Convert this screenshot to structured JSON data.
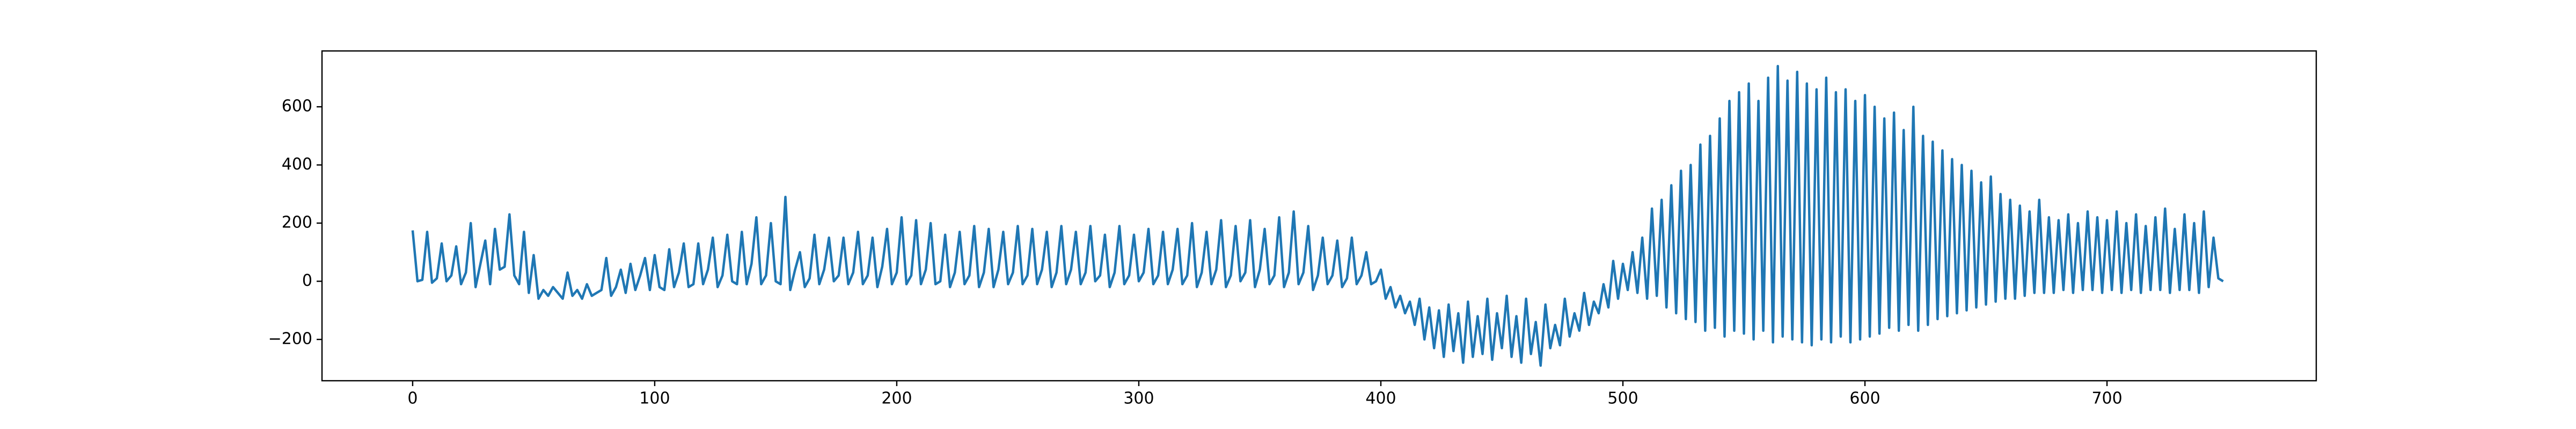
{
  "chart_data": {
    "type": "line",
    "color": "#1f77b4",
    "x": [
      0,
      2,
      4,
      6,
      8,
      10,
      12,
      14,
      16,
      18,
      20,
      22,
      24,
      26,
      28,
      30,
      32,
      34,
      36,
      38,
      40,
      42,
      44,
      46,
      48,
      50,
      52,
      54,
      56,
      58,
      60,
      62,
      64,
      66,
      68,
      70,
      72,
      74,
      76,
      78,
      80,
      82,
      84,
      86,
      88,
      90,
      92,
      94,
      96,
      98,
      100,
      102,
      104,
      106,
      108,
      110,
      112,
      114,
      116,
      118,
      120,
      122,
      124,
      126,
      128,
      130,
      132,
      134,
      136,
      138,
      140,
      142,
      144,
      146,
      148,
      150,
      152,
      154,
      156,
      158,
      160,
      162,
      164,
      166,
      168,
      170,
      172,
      174,
      176,
      178,
      180,
      182,
      184,
      186,
      188,
      190,
      192,
      194,
      196,
      198,
      200,
      202,
      204,
      206,
      208,
      210,
      212,
      214,
      216,
      218,
      220,
      222,
      224,
      226,
      228,
      230,
      232,
      234,
      236,
      238,
      240,
      242,
      244,
      246,
      248,
      250,
      252,
      254,
      256,
      258,
      260,
      262,
      264,
      266,
      268,
      270,
      272,
      274,
      276,
      278,
      280,
      282,
      284,
      286,
      288,
      290,
      292,
      294,
      296,
      298,
      300,
      302,
      304,
      306,
      308,
      310,
      312,
      314,
      316,
      318,
      320,
      322,
      324,
      326,
      328,
      330,
      332,
      334,
      336,
      338,
      340,
      342,
      344,
      346,
      348,
      350,
      352,
      354,
      356,
      358,
      360,
      362,
      364,
      366,
      368,
      370,
      372,
      374,
      376,
      378,
      380,
      382,
      384,
      386,
      388,
      390,
      392,
      394,
      396,
      398,
      400,
      402,
      404,
      406,
      408,
      410,
      412,
      414,
      416,
      418,
      420,
      422,
      424,
      426,
      428,
      430,
      432,
      434,
      436,
      438,
      440,
      442,
      444,
      446,
      448,
      450,
      452,
      454,
      456,
      458,
      460,
      462,
      464,
      466,
      468,
      470,
      472,
      474,
      476,
      478,
      480,
      482,
      484,
      486,
      488,
      490,
      492,
      494,
      496,
      498,
      500,
      502,
      504,
      506,
      508,
      510,
      512,
      514,
      516,
      518,
      520,
      522,
      524,
      526,
      528,
      530,
      532,
      534,
      536,
      538,
      540,
      542,
      544,
      546,
      548,
      550,
      552,
      554,
      556,
      558,
      560,
      562,
      564,
      566,
      568,
      570,
      572,
      574,
      576,
      578,
      580,
      582,
      584,
      586,
      588,
      590,
      592,
      594,
      596,
      598,
      600,
      602,
      604,
      606,
      608,
      610,
      612,
      614,
      616,
      618,
      620,
      622,
      624,
      626,
      628,
      630,
      632,
      634,
      636,
      638,
      640,
      642,
      644,
      646,
      648,
      650,
      652,
      654,
      656,
      658,
      660,
      662,
      664,
      666,
      668,
      670,
      672,
      674,
      676,
      678,
      680,
      682,
      684,
      686,
      688,
      690,
      692,
      694,
      696,
      698,
      700,
      702,
      704,
      706,
      708,
      710,
      712,
      714,
      716,
      718,
      720,
      722,
      724,
      726,
      728,
      730,
      732,
      734,
      736,
      738,
      740,
      742,
      744,
      746,
      748
    ],
    "values": [
      175,
      0,
      5,
      170,
      -5,
      10,
      130,
      0,
      20,
      120,
      -10,
      30,
      200,
      -20,
      60,
      140,
      -10,
      180,
      40,
      50,
      230,
      20,
      -10,
      170,
      -40,
      90,
      -60,
      -30,
      -50,
      -20,
      -40,
      -60,
      30,
      -50,
      -30,
      -60,
      -10,
      -50,
      -40,
      -30,
      80,
      -50,
      -20,
      40,
      -40,
      60,
      -30,
      20,
      80,
      -30,
      90,
      -20,
      -30,
      110,
      -20,
      30,
      130,
      -20,
      -10,
      130,
      -10,
      40,
      150,
      -20,
      20,
      160,
      0,
      -10,
      170,
      -10,
      60,
      220,
      -10,
      20,
      200,
      0,
      -10,
      290,
      -30,
      40,
      100,
      -20,
      10,
      160,
      -10,
      40,
      150,
      0,
      20,
      150,
      -10,
      30,
      170,
      -10,
      20,
      150,
      -20,
      50,
      180,
      -10,
      30,
      220,
      -10,
      20,
      210,
      -10,
      40,
      200,
      -10,
      0,
      160,
      -20,
      30,
      170,
      -10,
      20,
      190,
      -20,
      30,
      180,
      -20,
      40,
      170,
      -10,
      30,
      190,
      -10,
      20,
      180,
      -10,
      40,
      170,
      -20,
      30,
      190,
      -10,
      40,
      170,
      -10,
      30,
      190,
      0,
      20,
      160,
      -20,
      30,
      190,
      -10,
      20,
      160,
      0,
      30,
      180,
      -10,
      20,
      170,
      -10,
      40,
      180,
      -10,
      20,
      200,
      -20,
      30,
      170,
      -10,
      40,
      210,
      -20,
      20,
      190,
      0,
      30,
      210,
      -20,
      40,
      180,
      -10,
      20,
      220,
      -20,
      30,
      240,
      -10,
      30,
      190,
      -30,
      20,
      150,
      -10,
      20,
      140,
      -20,
      10,
      150,
      -10,
      20,
      100,
      -10,
      0,
      40,
      -60,
      -20,
      -90,
      -50,
      -110,
      -70,
      -150,
      -60,
      -200,
      -90,
      -230,
      -100,
      -260,
      -80,
      -240,
      -110,
      -280,
      -70,
      -260,
      -120,
      -250,
      -60,
      -270,
      -110,
      -230,
      -50,
      -260,
      -120,
      -280,
      -60,
      -250,
      -140,
      -290,
      -80,
      -230,
      -150,
      -220,
      -60,
      -190,
      -110,
      -170,
      -40,
      -150,
      -70,
      -110,
      -10,
      -90,
      70,
      -60,
      60,
      -30,
      100,
      -40,
      150,
      -60,
      250,
      -50,
      280,
      -90,
      330,
      -110,
      380,
      -130,
      400,
      -140,
      470,
      -170,
      500,
      -160,
      560,
      -190,
      620,
      -170,
      650,
      -180,
      680,
      -200,
      620,
      -170,
      700,
      -210,
      740,
      -190,
      690,
      -200,
      720,
      -210,
      680,
      -220,
      660,
      -200,
      700,
      -210,
      650,
      -190,
      660,
      -210,
      620,
      -200,
      640,
      -190,
      600,
      -180,
      560,
      -160,
      580,
      -170,
      520,
      -150,
      600,
      -170,
      500,
      -150,
      480,
      -130,
      450,
      -120,
      420,
      -110,
      400,
      -100,
      380,
      -90,
      340,
      -80,
      360,
      -70,
      300,
      -60,
      280,
      -60,
      260,
      -50,
      240,
      -40,
      280,
      -40,
      220,
      -40,
      210,
      -30,
      230,
      -40,
      200,
      -30,
      240,
      -30,
      220,
      -40,
      210,
      -30,
      240,
      -40,
      200,
      -30,
      230,
      -40,
      190,
      -30,
      220,
      -30,
      250,
      -40,
      180,
      -30,
      230,
      -30,
      200,
      -40,
      240,
      -20,
      150,
      10,
      0
    ],
    "xlim": [
      -37.45,
      786.45
    ],
    "ylim": [
      -342,
      792
    ],
    "xticks": [
      0,
      100,
      200,
      300,
      400,
      500,
      600,
      700
    ],
    "yticks": [
      {
        "value": -200,
        "label": "−200"
      },
      0,
      200,
      400,
      600
    ]
  }
}
